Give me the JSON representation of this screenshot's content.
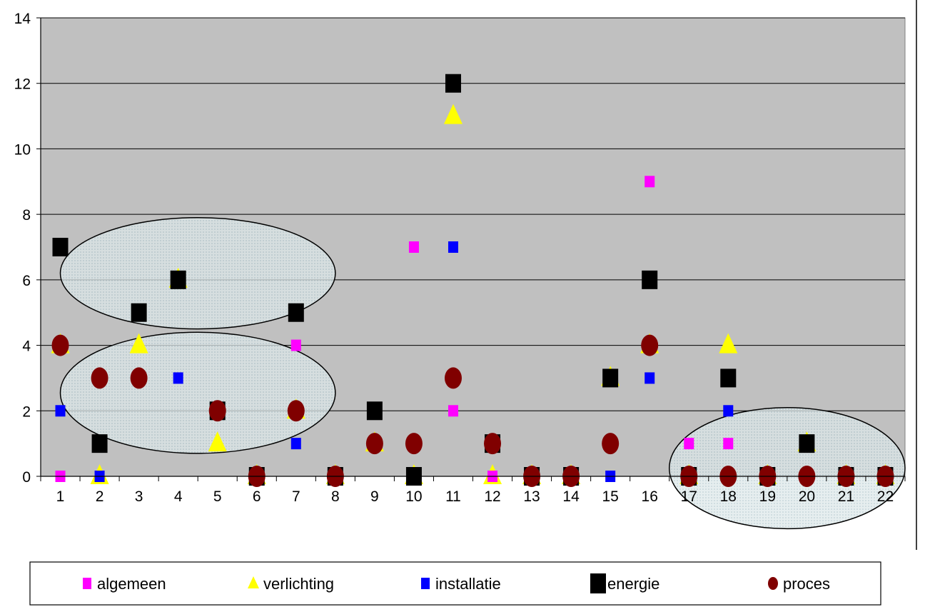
{
  "chart_data": {
    "type": "scatter",
    "categories": [
      "1",
      "2",
      "3",
      "4",
      "5",
      "6",
      "7",
      "8",
      "9",
      "10",
      "11",
      "12",
      "13",
      "14",
      "15",
      "16",
      "17",
      "18",
      "19",
      "20",
      "21",
      "22"
    ],
    "ylim": [
      0,
      14
    ],
    "yticks": [
      "0",
      "2",
      "4",
      "6",
      "8",
      "10",
      "12",
      "14"
    ],
    "grid": true,
    "legend_position": "bottom",
    "series": [
      {
        "name": "algemeen",
        "color": "#ff00ff",
        "marker": "small-square",
        "values": [
          0,
          null,
          null,
          null,
          null,
          null,
          4,
          null,
          null,
          7,
          2,
          0,
          null,
          null,
          null,
          9,
          1,
          1,
          null,
          null,
          null,
          null
        ]
      },
      {
        "name": "verlichting",
        "color": "#ffff00",
        "marker": "triangle",
        "values": [
          4,
          0,
          4,
          6,
          1,
          0,
          2,
          0,
          1,
          0,
          11,
          0,
          0,
          0,
          3,
          4,
          0,
          4,
          0,
          1,
          0,
          0
        ]
      },
      {
        "name": "installatie",
        "color": "#0000ff",
        "marker": "small-square",
        "values": [
          2,
          0,
          null,
          3,
          null,
          null,
          1,
          null,
          null,
          null,
          7,
          null,
          null,
          null,
          0,
          3,
          null,
          2,
          null,
          null,
          null,
          null
        ]
      },
      {
        "name": "energie",
        "color": "#000000",
        "marker": "square",
        "values": [
          7,
          1,
          5,
          6,
          2,
          0,
          5,
          0,
          2,
          0,
          12,
          1,
          0,
          0,
          3,
          6,
          0,
          3,
          0,
          1,
          0,
          0
        ]
      },
      {
        "name": "proces",
        "color": "#800000",
        "marker": "circle",
        "values": [
          4,
          3,
          3,
          null,
          2,
          0,
          2,
          0,
          1,
          1,
          3,
          1,
          0,
          0,
          1,
          4,
          0,
          0,
          0,
          0,
          0,
          0
        ]
      }
    ],
    "highlights": [
      {
        "x_from": 1,
        "x_to": 8,
        "y_from": 4.5,
        "y_to": 7.9
      },
      {
        "x_from": 1,
        "x_to": 8,
        "y_from": 0.7,
        "y_to": 4.4
      },
      {
        "x_from": 16.5,
        "x_to": 22.5,
        "y_from": -1.6,
        "y_to": 2.1
      }
    ]
  }
}
